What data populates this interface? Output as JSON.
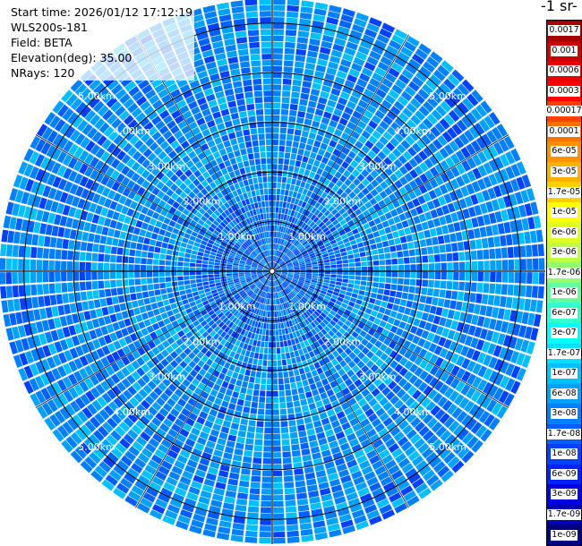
{
  "header": {
    "start_time": "Start time: 2026/01/12 17:12:19",
    "instrument": "WLS200s-181",
    "field": "Field: BETA",
    "elevation": "Elevation(deg): 35.00",
    "nrays": "NRays: 120"
  },
  "colorbar": {
    "unit_title": "-1 sr-",
    "levels": [
      {
        "label": "0.0017",
        "color": "#a50000"
      },
      {
        "label": "0.001",
        "color": "#c80000"
      },
      {
        "label": "0.0006",
        "color": "#e60000"
      },
      {
        "label": "0.0003",
        "color": "#ff0000"
      },
      {
        "label": "0.00017",
        "color": "#ff4000"
      },
      {
        "label": "0.0001",
        "color": "#ff7000"
      },
      {
        "label": "6e-05",
        "color": "#ff9000"
      },
      {
        "label": "3e-05",
        "color": "#ffb000"
      },
      {
        "label": "1.7e-05",
        "color": "#ffd000"
      },
      {
        "label": "1e-05",
        "color": "#ffff00"
      },
      {
        "label": "6e-06",
        "color": "#e0ff20"
      },
      {
        "label": "3e-06",
        "color": "#c0ff40"
      },
      {
        "label": "1.7e-06",
        "color": "#90ff70"
      },
      {
        "label": "1e-06",
        "color": "#60ffa0"
      },
      {
        "label": "6e-07",
        "color": "#30ffd0"
      },
      {
        "label": "3e-07",
        "color": "#00ffff"
      },
      {
        "label": "1.7e-07",
        "color": "#00e0ff"
      },
      {
        "label": "1e-07",
        "color": "#00c0ff"
      },
      {
        "label": "6e-08",
        "color": "#00a0ff"
      },
      {
        "label": "3e-08",
        "color": "#0080ff"
      },
      {
        "label": "1.7e-08",
        "color": "#0060ff"
      },
      {
        "label": "1e-08",
        "color": "#0040ff"
      },
      {
        "label": "6e-09",
        "color": "#0020ff"
      },
      {
        "label": "3e-09",
        "color": "#0000e0"
      },
      {
        "label": "1.7e-09",
        "color": "#0000b0"
      },
      {
        "label": "1e-09",
        "color": "#000080"
      }
    ]
  },
  "range_rings": {
    "max_range_km": 5.5,
    "ring_km": [
      1,
      2,
      3,
      4,
      5
    ],
    "labels": [
      "1.00km",
      "2.00km",
      "3.00km",
      "4.00km",
      "5.00km"
    ]
  },
  "rays": {
    "count": 120,
    "palette": [
      "#0040ff",
      "#0060ff",
      "#0080ff",
      "#00a0ff",
      "#00c0ff"
    ]
  }
}
